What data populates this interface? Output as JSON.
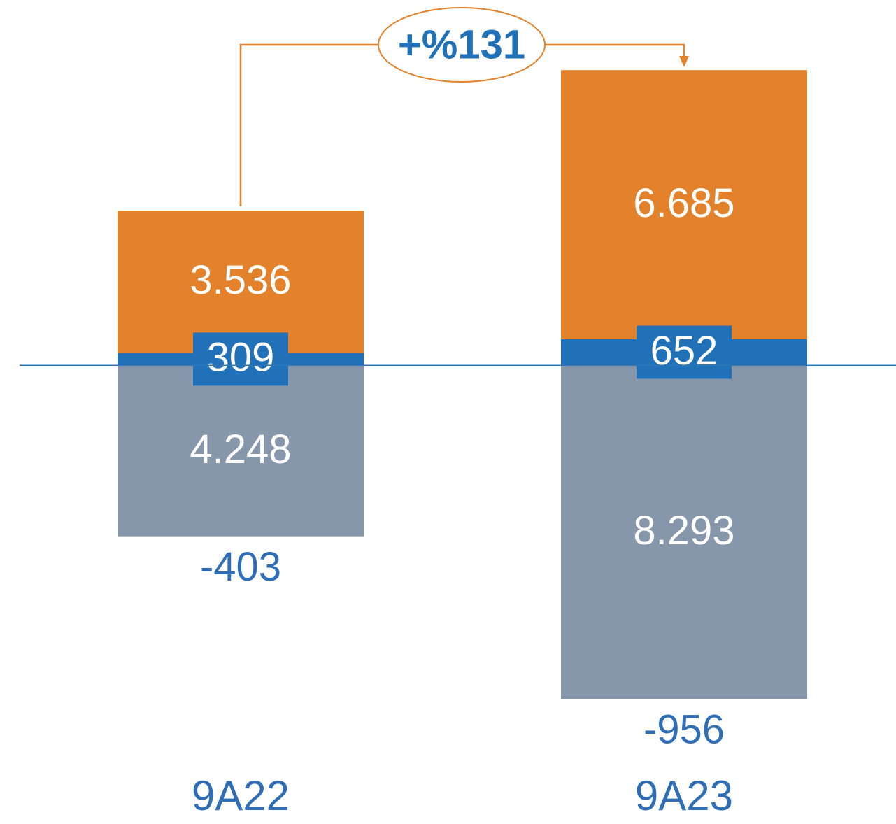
{
  "chart_data": {
    "type": "stacked-bar",
    "categories": [
      "9A22",
      "9A23"
    ],
    "series": [
      {
        "color": "#2171b8",
        "values": [
          309,
          652
        ],
        "value_labels": [
          "309",
          "652"
        ]
      },
      {
        "color": "#e3822a",
        "values": [
          3536,
          6685
        ],
        "value_labels": [
          "3.536",
          "6.685"
        ]
      },
      {
        "color": "#8797ab",
        "values": [
          -4248,
          -8293
        ],
        "value_labels": [
          "4.248",
          "8.293"
        ]
      }
    ],
    "totals": [
      -403,
      -956
    ],
    "annotation": "+%131",
    "ylim": [
      -11400,
      9080
    ]
  }
}
